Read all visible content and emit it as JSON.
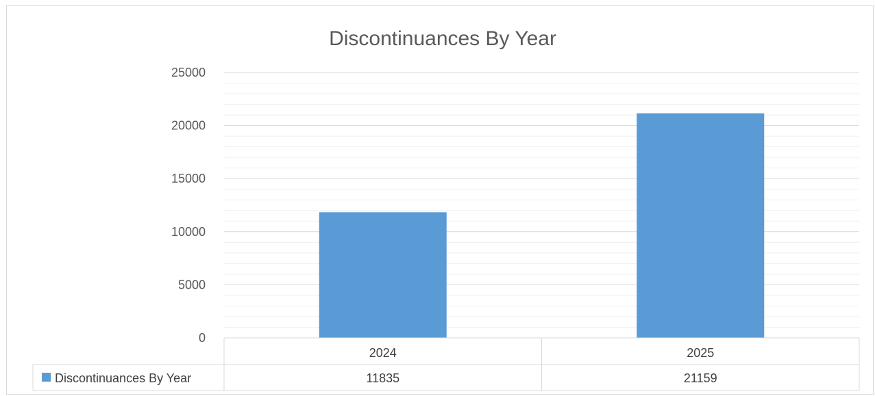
{
  "chart_data": {
    "type": "bar",
    "title": "Discontinuances By Year",
    "categories": [
      "2024",
      "2025"
    ],
    "series": [
      {
        "name": "Discontinuances By Year",
        "values": [
          11835,
          21159
        ],
        "color": "#5b9bd5"
      }
    ],
    "ylim": [
      0,
      25000
    ],
    "yticks": [
      "0",
      "5000",
      "10000",
      "15000",
      "20000",
      "25000"
    ],
    "y_major_step": 5000,
    "y_minor_step": 1000,
    "grid": true,
    "data_table": true,
    "legend_placement": "data-table"
  },
  "colors": {
    "bar": "#5b9bd5",
    "major_grid": "#d9d9d9",
    "minor_grid": "#efefef",
    "text": "#595959"
  }
}
